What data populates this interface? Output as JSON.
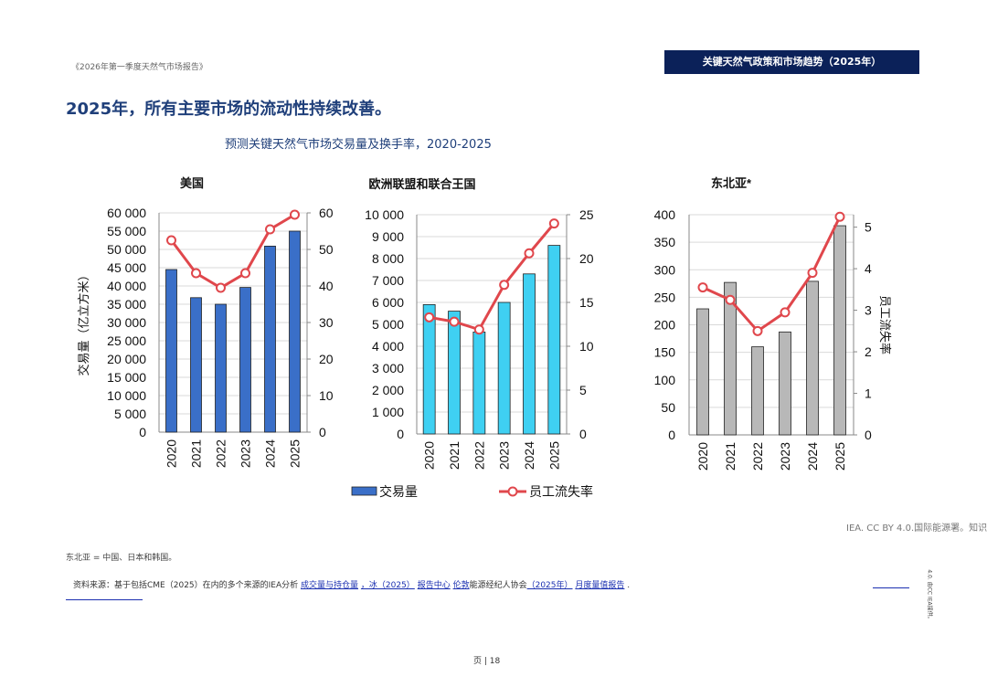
{
  "header": {
    "doc_title": "《2026年第一季度天然气市场报告》",
    "section_banner": "关键天然气政策和市场趋势（2025年）"
  },
  "headline": "2025年，所有主要市场的流动性持续改善。",
  "figure_title": "预测关键天然气市场交易量及换手率，2020-2025",
  "chart_data": [
    {
      "type": "bar+line",
      "title": "美国",
      "categories": [
        "2020",
        "2021",
        "2022",
        "2023",
        "2024",
        "2025"
      ],
      "series": [
        {
          "name": "交易量",
          "type": "bar",
          "axis": "left",
          "values": [
            44500,
            36800,
            35000,
            39600,
            50900,
            55000
          ]
        },
        {
          "name": "员工流失率",
          "type": "line",
          "axis": "right",
          "values": [
            52.5,
            43.5,
            39.5,
            43.5,
            55.5,
            59.5
          ]
        }
      ],
      "y_left": {
        "min": 0,
        "max": 60000,
        "step": 5000,
        "tick_labels": [
          "0",
          "5 000",
          "10 000",
          "15 000",
          "20 000",
          "25 000",
          "30 000",
          "35 000",
          "40 000",
          "45 000",
          "50 000",
          "55 000",
          "60 000"
        ],
        "label": "交易量（亿立方米）"
      },
      "y_right": {
        "min": 0,
        "max": 60,
        "step": 10,
        "tick_labels": [
          "0",
          "10",
          "20",
          "30",
          "40",
          "50",
          "60"
        ]
      },
      "bar_color": "#3a6fc8"
    },
    {
      "type": "bar+line",
      "title": "欧洲联盟和联合王国",
      "categories": [
        "2020",
        "2021",
        "2022",
        "2023",
        "2024",
        "2025"
      ],
      "series": [
        {
          "name": "交易量",
          "type": "bar",
          "axis": "left",
          "values": [
            5900,
            5600,
            4650,
            6000,
            7300,
            8600
          ]
        },
        {
          "name": "员工流失率",
          "type": "line",
          "axis": "right",
          "values": [
            13.3,
            12.8,
            11.9,
            17.0,
            20.6,
            24.0
          ]
        }
      ],
      "y_left": {
        "min": 0,
        "max": 10000,
        "step": 1000,
        "tick_labels": [
          "0",
          "1 000",
          "2 000",
          "3 000",
          "4 000",
          "5 000",
          "6 000",
          "7 000",
          "8 000",
          "9 000",
          "10 000"
        ]
      },
      "y_right": {
        "min": 0,
        "max": 25,
        "step": 5,
        "tick_labels": [
          "0",
          "5",
          "10",
          "15",
          "20",
          "25"
        ]
      },
      "bar_color": "#3fd0f2"
    },
    {
      "type": "bar+line",
      "title": "东北亚*",
      "categories": [
        "2020",
        "2021",
        "2022",
        "2023",
        "2024",
        "2025"
      ],
      "series": [
        {
          "name": "交易量",
          "type": "bar",
          "axis": "left",
          "values": [
            229,
            277,
            160,
            187,
            279,
            380
          ]
        },
        {
          "name": "员工流失率",
          "type": "line",
          "axis": "right",
          "values": [
            3.55,
            3.25,
            2.5,
            2.95,
            3.9,
            5.25
          ]
        }
      ],
      "y_left": {
        "min": 0,
        "max": 400,
        "step": 50,
        "tick_labels": [
          "0",
          "50",
          "100",
          "150",
          "200",
          "250",
          "300",
          "350",
          "400"
        ]
      },
      "y_right": {
        "min": 0,
        "max": 5.3,
        "step": 1,
        "tick_labels": [
          "0",
          "1",
          "2",
          "3",
          "4",
          "5"
        ],
        "label": "员工流失率"
      },
      "bar_color": "#b8b8b8"
    }
  ],
  "legend": {
    "bar": "交易量",
    "line": "员工流失率",
    "line_color": "#e0474c"
  },
  "license": "IEA. CC BY 4.0.国际能源署。知识",
  "footnote": "东北亚 = 中国、日本和韩国。",
  "sources": {
    "prefix": "资料来源：基于包括CME（2025）在内的多个来源的IEA分析",
    "link1": "成交量与持仓量",
    "link2": "，冰（2025）",
    "link3": "报告中心",
    "link4": "伦敦",
    "middle": "能源经纪人协会",
    "link5": "（2025年）",
    "link6": "月度量值报告",
    "end": "."
  },
  "side_note": "4.0. 由CC IEA提供。",
  "page_number": "页 | 18"
}
